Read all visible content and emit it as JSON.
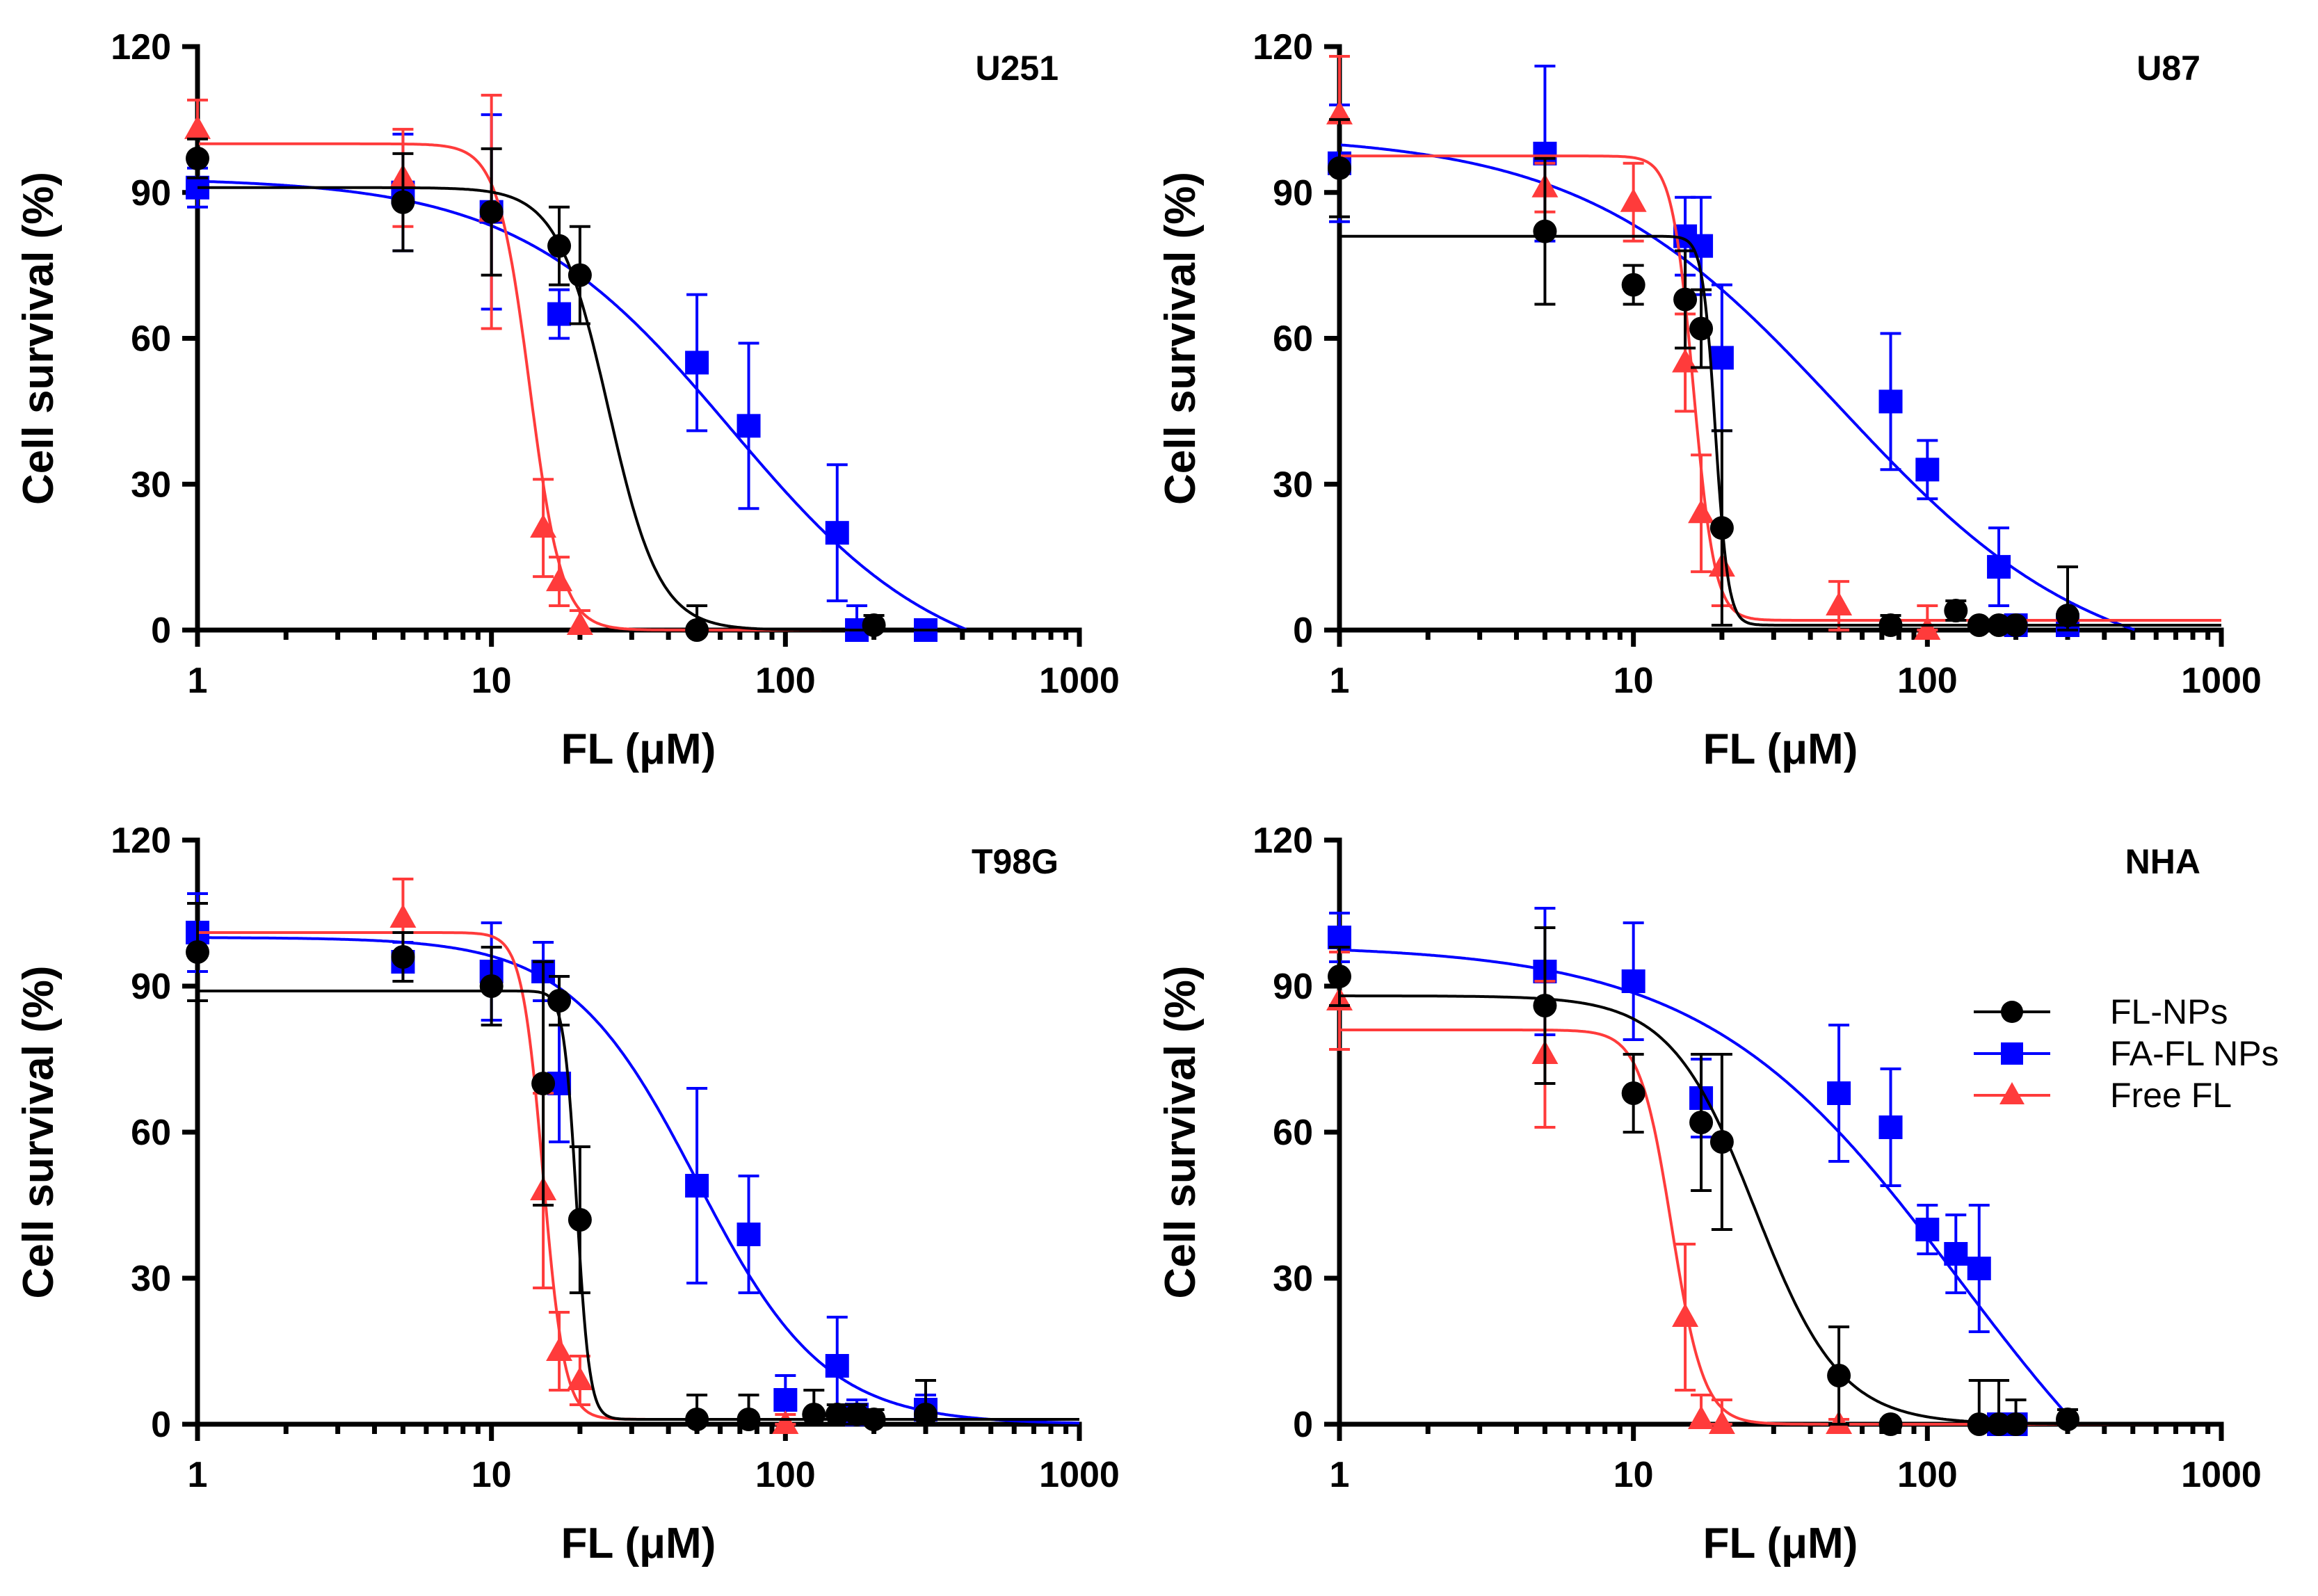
{
  "chart_data": {
    "type": "scatter",
    "x_scale": "log",
    "xlim": [
      1,
      1000
    ],
    "ylim": [
      0,
      120
    ],
    "xlabel": "FL (μM)",
    "ylabel": "Cell survival (%)",
    "x_ticks": [
      "1",
      "10",
      "100",
      "1000"
    ],
    "y_ticks": [
      "0",
      "30",
      "60",
      "90",
      "120"
    ],
    "legend": [
      {
        "name": "FL-NPs",
        "marker": "circle",
        "color": "#000000"
      },
      {
        "name": "FA-FL NPs",
        "marker": "square",
        "color": "#0000ff"
      },
      {
        "name": "Free FL",
        "marker": "triangle",
        "color": "#ff3b3b"
      }
    ],
    "panels": [
      {
        "label": "U251",
        "series": [
          {
            "name": "FL-NPs",
            "points": [
              [
                1,
                97,
                4
              ],
              [
                5,
                88,
                10
              ],
              [
                10,
                86,
                13
              ],
              [
                17,
                79,
                8
              ],
              [
                20,
                73,
                10
              ],
              [
                50,
                0,
                5
              ],
              [
                200,
                1,
                2
              ]
            ],
            "fit": {
              "top": 91,
              "bottom": 0,
              "ic50": 25,
              "hill": 5
            }
          },
          {
            "name": "FA-FL NPs",
            "points": [
              [
                1,
                91,
                4
              ],
              [
                5,
                90,
                12
              ],
              [
                10,
                86,
                20
              ],
              [
                17,
                65,
                5
              ],
              [
                50,
                55,
                14
              ],
              [
                75,
                42,
                17
              ],
              [
                150,
                20,
                14
              ],
              [
                175,
                0,
                5
              ],
              [
                300,
                0,
                1
              ]
            ],
            "fit": {
              "top": 93,
              "bottom": -10,
              "ic50": 65,
              "hill": 1.2
            }
          },
          {
            "name": "Free FL",
            "points": [
              [
                1,
                103,
                6
              ],
              [
                5,
                93,
                10
              ],
              [
                10,
                86,
                24
              ],
              [
                15,
                21,
                10
              ],
              [
                17,
                10,
                5
              ],
              [
                20,
                1,
                3
              ]
            ],
            "fit": {
              "top": 100,
              "bottom": 0,
              "ic50": 13.5,
              "hill": 8
            }
          }
        ]
      },
      {
        "label": "U87",
        "series": [
          {
            "name": "FL-NPs",
            "points": [
              [
                1,
                95,
                10
              ],
              [
                5,
                82,
                15
              ],
              [
                10,
                71,
                4
              ],
              [
                15,
                68,
                10
              ],
              [
                17,
                62,
                8
              ],
              [
                20,
                21,
                20
              ],
              [
                75,
                1,
                2
              ],
              [
                125,
                4,
                2
              ],
              [
                150,
                1,
                1
              ],
              [
                175,
                1,
                1
              ],
              [
                200,
                1,
                1
              ],
              [
                300,
                3,
                10
              ]
            ],
            "fit": {
              "top": 81,
              "bottom": 1,
              "ic50": 19,
              "hill": 20
            }
          },
          {
            "name": "FA-FL NPs",
            "points": [
              [
                1,
                96,
                12
              ],
              [
                5,
                98,
                18
              ],
              [
                15,
                81,
                8
              ],
              [
                17,
                79,
                10
              ],
              [
                20,
                56,
                15
              ],
              [
                75,
                47,
                14
              ],
              [
                100,
                33,
                6
              ],
              [
                175,
                13,
                8
              ],
              [
                200,
                1,
                1
              ],
              [
                300,
                1,
                1
              ]
            ],
            "fit": {
              "top": 102,
              "bottom": -10,
              "ic50": 50,
              "hill": 1.0
            }
          },
          {
            "name": "Free FL",
            "points": [
              [
                1,
                106,
                12
              ],
              [
                5,
                91,
                5
              ],
              [
                10,
                88,
                8
              ],
              [
                15,
                55,
                10
              ],
              [
                17,
                24,
                12
              ],
              [
                20,
                13,
                8
              ],
              [
                50,
                5,
                5
              ],
              [
                100,
                0,
                5
              ]
            ],
            "fit": {
              "top": 97.5,
              "bottom": 2,
              "ic50": 16,
              "hill": 12
            }
          }
        ]
      },
      {
        "label": "T98G",
        "series": [
          {
            "name": "FL-NPs",
            "points": [
              [
                1,
                97,
                10
              ],
              [
                5,
                96,
                5
              ],
              [
                10,
                90,
                8
              ],
              [
                15,
                70,
                25
              ],
              [
                17,
                87,
                5
              ],
              [
                20,
                42,
                15
              ],
              [
                50,
                1,
                5
              ],
              [
                75,
                1,
                5
              ],
              [
                125,
                2,
                5
              ],
              [
                150,
                2,
                2
              ],
              [
                175,
                2,
                2
              ],
              [
                200,
                1,
                2
              ],
              [
                300,
                2,
                7
              ]
            ],
            "fit": {
              "top": 89,
              "bottom": 1,
              "ic50": 19.5,
              "hill": 20
            }
          },
          {
            "name": "FA-FL NPs",
            "points": [
              [
                1,
                101,
                8
              ],
              [
                5,
                95,
                4
              ],
              [
                10,
                93,
                10
              ],
              [
                15,
                93,
                6
              ],
              [
                17,
                70,
                12
              ],
              [
                50,
                49,
                20
              ],
              [
                75,
                39,
                12
              ],
              [
                100,
                5,
                5
              ],
              [
                150,
                12,
                10
              ],
              [
                175,
                2,
                3
              ],
              [
                300,
                3,
                3
              ]
            ],
            "fit": {
              "top": 100,
              "bottom": 0,
              "ic50": 50,
              "hill": 2
            }
          },
          {
            "name": "Free FL",
            "points": [
              [
                5,
                104,
                8
              ],
              [
                15,
                48,
                20
              ],
              [
                17,
                15,
                8
              ],
              [
                20,
                9,
                5
              ],
              [
                100,
                0,
                2
              ]
            ],
            "fit": {
              "top": 101,
              "bottom": 1,
              "ic50": 15,
              "hill": 12
            }
          }
        ]
      },
      {
        "label": "NHA",
        "series": [
          {
            "name": "FL-NPs",
            "points": [
              [
                1,
                92,
                6
              ],
              [
                5,
                86,
                16
              ],
              [
                10,
                68,
                8
              ],
              [
                17,
                62,
                14
              ],
              [
                20,
                58,
                18
              ],
              [
                50,
                10,
                10
              ],
              [
                75,
                0,
                1
              ],
              [
                150,
                0,
                9
              ],
              [
                175,
                0,
                9
              ],
              [
                200,
                0,
                5
              ],
              [
                300,
                1,
                2
              ]
            ],
            "fit": {
              "top": 88,
              "bottom": 0,
              "ic50": 26,
              "hill": 3
            }
          },
          {
            "name": "FA-FL NPs",
            "points": [
              [
                1,
                100,
                5
              ],
              [
                5,
                93,
                13
              ],
              [
                10,
                91,
                12
              ],
              [
                17,
                67,
                8
              ],
              [
                50,
                68,
                14
              ],
              [
                75,
                61,
                12
              ],
              [
                100,
                40,
                5
              ],
              [
                125,
                35,
                8
              ],
              [
                150,
                32,
                13
              ],
              [
                175,
                0,
                1
              ],
              [
                200,
                0,
                1
              ]
            ],
            "fit": {
              "top": 98.5,
              "bottom": -40,
              "ic50": 130,
              "hill": 1.0
            }
          },
          {
            "name": "Free FL",
            "points": [
              [
                1,
                87,
                10
              ],
              [
                5,
                76,
                15
              ],
              [
                15,
                22,
                15
              ],
              [
                17,
                1,
                5
              ],
              [
                20,
                0,
                5
              ],
              [
                50,
                0,
                1
              ]
            ],
            "fit": {
              "top": 81,
              "bottom": 0,
              "ic50": 13.5,
              "hill": 8
            }
          }
        ]
      }
    ]
  }
}
